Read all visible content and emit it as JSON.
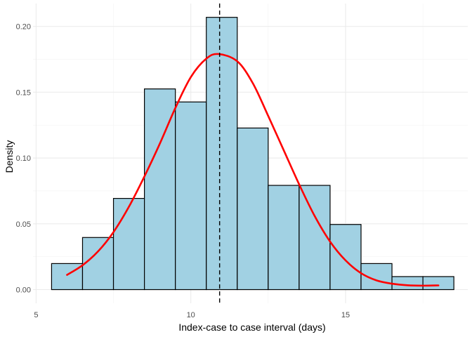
{
  "chart_data": {
    "type": "bar",
    "xlabel": "Index-case to case interval (days)",
    "ylabel": "Density",
    "xlim": [
      4.9,
      18.95
    ],
    "ylim": [
      -0.0104,
      0.2174
    ],
    "x_ticks": [
      5,
      10,
      15
    ],
    "y_ticks": [
      0.0,
      0.05,
      0.1,
      0.15,
      0.2
    ],
    "y_tick_labels": [
      "0.00",
      "0.05",
      "0.10",
      "0.15",
      "0.20"
    ],
    "grid": true,
    "histogram": {
      "bin_width": 1,
      "bins": [
        {
          "x0": 5.5,
          "x1": 6.5,
          "density": 0.0198
        },
        {
          "x0": 6.5,
          "x1": 7.5,
          "density": 0.0396
        },
        {
          "x0": 7.5,
          "x1": 8.5,
          "density": 0.0693
        },
        {
          "x0": 8.5,
          "x1": 9.5,
          "density": 0.1525
        },
        {
          "x0": 9.5,
          "x1": 10.5,
          "density": 0.1426
        },
        {
          "x0": 10.5,
          "x1": 11.5,
          "density": 0.2069
        },
        {
          "x0": 11.5,
          "x1": 12.5,
          "density": 0.1228
        },
        {
          "x0": 12.5,
          "x1": 13.5,
          "density": 0.0792
        },
        {
          "x0": 13.5,
          "x1": 14.5,
          "density": 0.0792
        },
        {
          "x0": 14.5,
          "x1": 15.5,
          "density": 0.0495
        },
        {
          "x0": 15.5,
          "x1": 16.5,
          "density": 0.0198
        },
        {
          "x0": 16.5,
          "x1": 17.5,
          "density": 0.0099
        },
        {
          "x0": 17.5,
          "x1": 18.5,
          "density": 0.0099
        }
      ]
    },
    "density_curve": {
      "x": [
        6.0,
        6.5,
        7.0,
        7.5,
        8.0,
        8.5,
        9.0,
        9.5,
        10.0,
        10.5,
        10.9,
        11.5,
        12.0,
        12.5,
        13.0,
        13.5,
        14.0,
        14.5,
        15.0,
        15.5,
        16.0,
        16.5,
        17.0,
        17.5,
        18.0
      ],
      "y": [
        0.0112,
        0.0185,
        0.029,
        0.0437,
        0.063,
        0.086,
        0.111,
        0.138,
        0.1615,
        0.1755,
        0.179,
        0.1735,
        0.157,
        0.132,
        0.106,
        0.08,
        0.056,
        0.0365,
        0.0222,
        0.0125,
        0.007,
        0.0045,
        0.0033,
        0.003,
        0.0032
      ]
    },
    "mean_line_x": 10.93,
    "colors": {
      "bar_fill": "#a1d1e3",
      "bar_outline": "#000000",
      "curve": "#ff0000",
      "mean_line": "#000000",
      "grid": "#ebebeb"
    }
  }
}
